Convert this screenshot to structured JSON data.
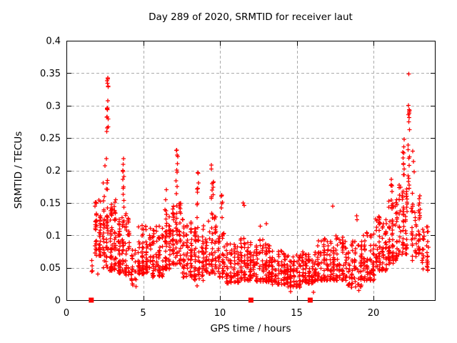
{
  "page": {
    "background": "#ffffff"
  },
  "chart_data": {
    "type": "scatter",
    "title": "Day 289 of 2020, SRMTID for receiver laut",
    "xlabel": "GPS time / hours",
    "ylabel": "SRMTID / TECUs",
    "xlim": [
      0,
      24
    ],
    "ylim": [
      0,
      0.4
    ],
    "xticks": [
      0,
      5,
      10,
      15,
      20
    ],
    "xtick_labels": [
      "0",
      "5",
      "10",
      "15",
      "20"
    ],
    "yticks": [
      0,
      0.05,
      0.1,
      0.15,
      0.2,
      0.25,
      0.3,
      0.35,
      0.4
    ],
    "ytick_labels": [
      "0",
      "0.05",
      "0.1",
      "0.15",
      "0.2",
      "0.25",
      "0.3",
      "0.35",
      "0.4"
    ],
    "grid": true,
    "legend": "none",
    "marker": "+",
    "marker_color": "#ff0000",
    "grid_color": "#aaaaaa",
    "axis_color": "#000000",
    "seed": 289,
    "cluster_format": "[x_start_hour, x_end_hour, n_points, y_min_TECU, y_max_TECU, low_skew]",
    "series": [
      {
        "name": "SRMTID",
        "clusters": [
          [
            1.55,
            1.8,
            5,
            0.035,
            0.062,
            1.0
          ],
          [
            1.8,
            2.3,
            58,
            0.068,
            0.155,
            1.35
          ],
          [
            2.3,
            2.75,
            52,
            0.05,
            0.185,
            1.45
          ],
          [
            2.58,
            2.78,
            17,
            0.258,
            0.352,
            1.0
          ],
          [
            2.78,
            3.3,
            68,
            0.045,
            0.158,
            1.5
          ],
          [
            3.3,
            3.58,
            38,
            0.04,
            0.125,
            1.45
          ],
          [
            3.62,
            3.8,
            14,
            0.118,
            0.228,
            1.0
          ],
          [
            3.58,
            4.15,
            58,
            0.038,
            0.135,
            1.5
          ],
          [
            4.15,
            4.6,
            24,
            0.02,
            0.08,
            1.3
          ],
          [
            4.6,
            5.35,
            70,
            0.04,
            0.115,
            1.5
          ],
          [
            5.35,
            6.35,
            88,
            0.035,
            0.115,
            1.45
          ],
          [
            6.35,
            6.85,
            58,
            0.048,
            0.14,
            1.4
          ],
          [
            6.85,
            7.5,
            75,
            0.055,
            0.15,
            1.4
          ],
          [
            7.1,
            7.3,
            10,
            0.15,
            0.235,
            1.0
          ],
          [
            7.5,
            8.25,
            70,
            0.035,
            0.125,
            1.5
          ],
          [
            8.45,
            8.65,
            10,
            0.12,
            0.2,
            1.0
          ],
          [
            8.25,
            9.0,
            68,
            0.03,
            0.115,
            1.5
          ],
          [
            9.0,
            9.8,
            68,
            0.04,
            0.13,
            1.45
          ],
          [
            9.35,
            9.65,
            12,
            0.13,
            0.21,
            1.0
          ],
          [
            9.8,
            10.35,
            42,
            0.035,
            0.105,
            1.4
          ],
          [
            10.05,
            10.2,
            6,
            0.12,
            0.17,
            1.0
          ],
          [
            10.35,
            11.3,
            72,
            0.025,
            0.092,
            1.45
          ],
          [
            11.3,
            12.3,
            88,
            0.03,
            0.096,
            1.5
          ],
          [
            12.3,
            13.3,
            88,
            0.028,
            0.095,
            1.5
          ],
          [
            13.3,
            14.3,
            88,
            0.024,
            0.08,
            1.5
          ],
          [
            14.3,
            15.3,
            88,
            0.02,
            0.07,
            1.45
          ],
          [
            15.3,
            16.3,
            88,
            0.025,
            0.075,
            1.45
          ],
          [
            16.3,
            17.3,
            82,
            0.03,
            0.095,
            1.45
          ],
          [
            17.3,
            18.3,
            82,
            0.03,
            0.1,
            1.45
          ],
          [
            18.3,
            19.3,
            78,
            0.02,
            0.095,
            1.45
          ],
          [
            19.3,
            20.1,
            72,
            0.03,
            0.105,
            1.4
          ],
          [
            20.1,
            20.9,
            78,
            0.045,
            0.13,
            1.4
          ],
          [
            20.9,
            21.6,
            72,
            0.055,
            0.155,
            1.35
          ],
          [
            21.1,
            21.25,
            8,
            0.14,
            0.2,
            1.0
          ],
          [
            21.6,
            22.25,
            62,
            0.07,
            0.185,
            1.3
          ],
          [
            21.85,
            22.05,
            10,
            0.19,
            0.25,
            1.0
          ],
          [
            22.2,
            22.4,
            20,
            0.17,
            0.36,
            1.1
          ],
          [
            22.4,
            23.1,
            52,
            0.06,
            0.165,
            1.3
          ],
          [
            23.1,
            23.65,
            34,
            0.045,
            0.115,
            1.3
          ]
        ],
        "outliers": [
          [
            2.6,
            0.218
          ],
          [
            2.51,
            0.207
          ],
          [
            6.5,
            0.17
          ],
          [
            6.46,
            0.155
          ],
          [
            11.52,
            0.15
          ],
          [
            11.57,
            0.146
          ],
          [
            17.35,
            0.145
          ],
          [
            12.62,
            0.114
          ],
          [
            13.02,
            0.118
          ],
          [
            18.9,
            0.13
          ],
          [
            18.94,
            0.124
          ],
          [
            10.12,
            0.162
          ],
          [
            22.55,
            0.23
          ],
          [
            22.6,
            0.214
          ],
          [
            22.66,
            0.198
          ],
          [
            23.0,
            0.15
          ],
          [
            23.05,
            0.14
          ],
          [
            2.05,
            0.04
          ],
          [
            8.52,
            0.022
          ],
          [
            19.05,
            0.015
          ],
          [
            14.6,
            0.013
          ],
          [
            16.1,
            0.012
          ]
        ],
        "zero_markers": [
          1.62,
          12.02,
          15.88
        ]
      }
    ]
  }
}
